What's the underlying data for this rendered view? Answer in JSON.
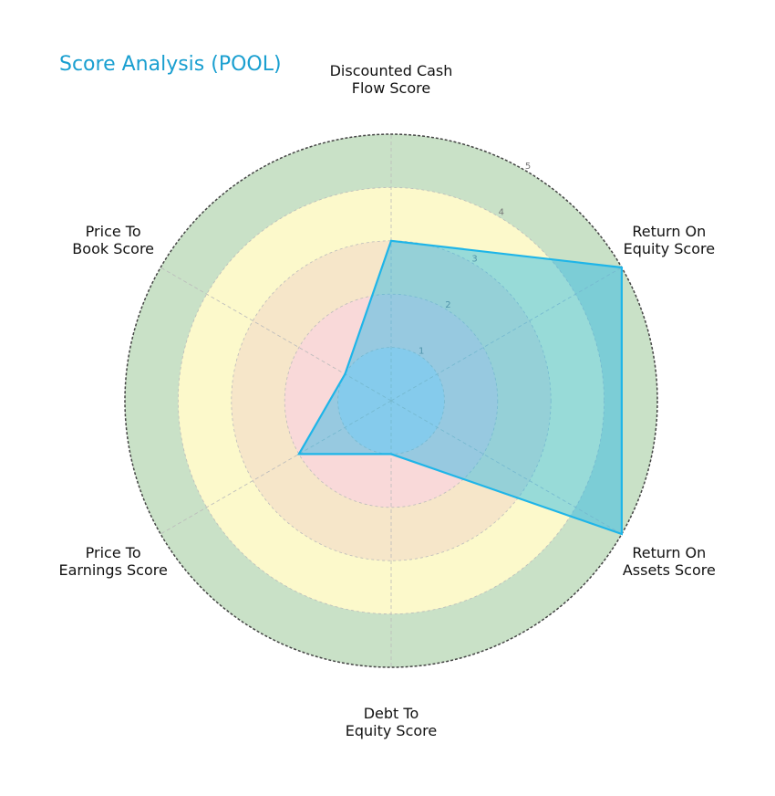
{
  "chart_data": {
    "type": "radar",
    "title": "Score Analysis (POOL)",
    "categories": [
      "Discounted Cash\nFlow Score",
      "Return On\nEquity Score",
      "Return On\nAssets Score",
      "Debt To\nEquity Score",
      "Price To\nEarnings Score",
      "Price To\nBook Score"
    ],
    "series": [
      {
        "name": "POOL",
        "color": "#1fb5e8",
        "values": [
          3,
          5,
          5,
          1,
          2,
          1
        ]
      }
    ],
    "ylim": [
      0,
      5
    ],
    "yticks": [
      1,
      2,
      3,
      4,
      5
    ],
    "grid": true,
    "band_colors": [
      "#d9dcee",
      "#f9d9d9",
      "#f6e6c9",
      "#fcf9cb",
      "#c9e1c7"
    ]
  }
}
